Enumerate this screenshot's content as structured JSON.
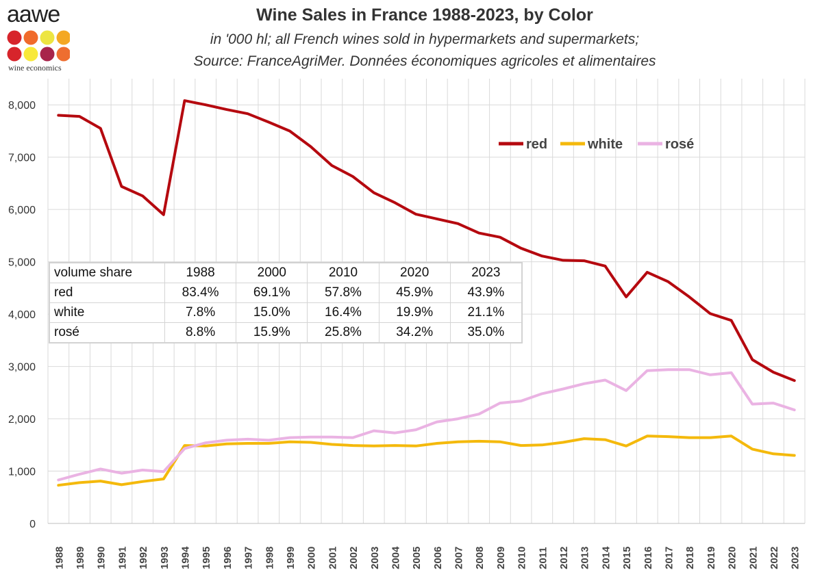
{
  "logo": {
    "word": "aawe",
    "subtitle": "wine economics",
    "dot_colors": [
      "#d7242b",
      "#f06a2b",
      "#ede542",
      "#f4a824",
      "#d7242b",
      "#f8e93a",
      "#a8244a",
      "#ee6e30"
    ]
  },
  "colors": {
    "red": "#b5090f",
    "white": "#f4b90c",
    "rose": "#eab3e3",
    "grid": "#d9d9d9",
    "axis": "#bfbfbf"
  },
  "chart_data": {
    "type": "line",
    "title": "Wine Sales in France 1988-2023, by Color",
    "subtitle_lines": [
      "in '000 hl; all French wines sold in hypermarkets and supermarkets;",
      "Source: FranceAgriMer. Données économiques agricoles et alimentaires"
    ],
    "xlabel": "",
    "ylabel": "",
    "ylim": [
      0,
      8500
    ],
    "yticks": [
      0,
      1000,
      2000,
      3000,
      4000,
      5000,
      6000,
      7000,
      8000
    ],
    "ytick_labels": [
      "0",
      "1,000",
      "2,000",
      "3,000",
      "4,000",
      "5,000",
      "6,000",
      "7,000",
      "8,000"
    ],
    "grid": true,
    "legend_position": "top-right",
    "categories": [
      "1988",
      "1989",
      "1990",
      "1991",
      "1992",
      "1993",
      "1994",
      "1995",
      "1996",
      "1997",
      "1998",
      "1999",
      "2000",
      "2001",
      "2002",
      "2003",
      "2004",
      "2005",
      "2006",
      "2007",
      "2008",
      "2009",
      "2010",
      "2011",
      "2012",
      "2013",
      "2014",
      "2015",
      "2016",
      "2017",
      "2018",
      "2019",
      "2020",
      "2021",
      "2022",
      "2023"
    ],
    "series": [
      {
        "name": "red",
        "color_key": "red",
        "values": [
          7800,
          7780,
          7550,
          6440,
          6260,
          5900,
          8080,
          8000,
          7910,
          7830,
          7670,
          7500,
          7200,
          6840,
          6630,
          6320,
          6130,
          5910,
          5820,
          5730,
          5550,
          5470,
          5260,
          5110,
          5030,
          5020,
          4920,
          4330,
          4800,
          4620,
          4330,
          4010,
          3880,
          3130,
          2890,
          2730
        ]
      },
      {
        "name": "white",
        "color_key": "white",
        "values": [
          730,
          780,
          810,
          740,
          800,
          850,
          1490,
          1480,
          1520,
          1530,
          1530,
          1560,
          1550,
          1510,
          1490,
          1480,
          1490,
          1480,
          1530,
          1560,
          1570,
          1560,
          1490,
          1500,
          1550,
          1620,
          1600,
          1480,
          1670,
          1660,
          1640,
          1640,
          1670,
          1420,
          1330,
          1300
        ]
      },
      {
        "name": "rosé",
        "color_key": "rose",
        "values": [
          830,
          940,
          1040,
          960,
          1020,
          990,
          1430,
          1540,
          1590,
          1610,
          1590,
          1640,
          1650,
          1650,
          1640,
          1770,
          1730,
          1790,
          1940,
          2000,
          2090,
          2300,
          2340,
          2480,
          2570,
          2670,
          2740,
          2540,
          2920,
          2940,
          2940,
          2840,
          2880,
          2280,
          2300,
          2170
        ]
      }
    ]
  },
  "share_table": {
    "header": [
      "volume share",
      "1988",
      "2000",
      "2010",
      "2020",
      "2023"
    ],
    "rows": [
      [
        "red",
        "83.4%",
        "69.1%",
        "57.8%",
        "45.9%",
        "43.9%"
      ],
      [
        "white",
        "7.8%",
        "15.0%",
        "16.4%",
        "19.9%",
        "21.1%"
      ],
      [
        "rosé",
        "8.8%",
        "15.9%",
        "25.8%",
        "34.2%",
        "35.0%"
      ]
    ]
  }
}
